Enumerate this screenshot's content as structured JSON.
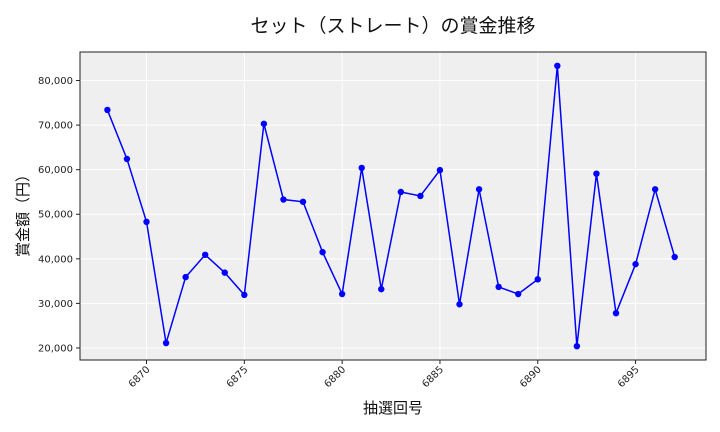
{
  "chart_data": {
    "type": "line",
    "title": "セット（ストレート）の賞金推移",
    "xlabel": "抽選回号",
    "ylabel": "賞金額（円）",
    "x": [
      6868,
      6869,
      6870,
      6871,
      6872,
      6873,
      6874,
      6875,
      6876,
      6877,
      6878,
      6879,
      6880,
      6881,
      6882,
      6883,
      6884,
      6885,
      6886,
      6887,
      6888,
      6889,
      6890,
      6891,
      6892,
      6893,
      6894,
      6895,
      6896,
      6897
    ],
    "series": [
      {
        "name": "セット（ストレート）",
        "color": "#0000ff",
        "marker": "circle",
        "values": [
          73400,
          62400,
          48300,
          21100,
          35900,
          40900,
          36900,
          31900,
          70300,
          53300,
          52800,
          41500,
          32100,
          60400,
          33200,
          55000,
          54100,
          59900,
          29800,
          55600,
          33700,
          32100,
          35400,
          83300,
          20400,
          59100,
          27800,
          38800,
          55600,
          40400
        ]
      }
    ],
    "xticks": [
      6870,
      6875,
      6880,
      6885,
      6890,
      6895
    ],
    "xtick_labels": [
      "6870",
      "6875",
      "6880",
      "6885",
      "6890",
      "6895"
    ],
    "yticks": [
      20000,
      30000,
      40000,
      50000,
      60000,
      70000,
      80000
    ],
    "ytick_labels": [
      "20,000",
      "30,000",
      "40,000",
      "50,000",
      "60,000",
      "70,000",
      "80,000"
    ],
    "xlim": [
      6866.6,
      6898.6
    ],
    "ylim": [
      17300,
      86400
    ],
    "grid": true,
    "legend": null,
    "colors": {
      "plot_background": "#efefef",
      "grid": "#ffffff",
      "line": "#0000ff",
      "axis": "#222222"
    }
  }
}
